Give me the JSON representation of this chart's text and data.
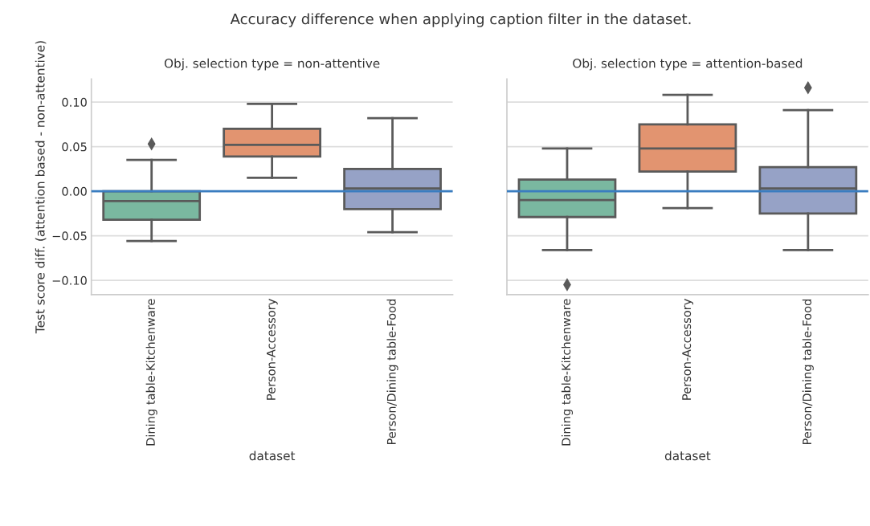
{
  "chart_data": [
    {
      "type": "box",
      "title": "Obj. selection type = non-attentive",
      "xlabel": "dataset",
      "ylabel": "Test score diff. (attention based - non-attentive)",
      "annotations": [
        "Accuracy difference when applying caption filter in the dataset."
      ],
      "categories": [
        "Dining table-Kitchenware",
        "Person-Accessory",
        "Person/Dining table-Food"
      ],
      "colors": [
        "#7ab8a0",
        "#e29470",
        "#96a2c6"
      ],
      "boxes": [
        {
          "low": -0.056,
          "q1": -0.032,
          "median": -0.011,
          "q3": 0.0,
          "high": 0.035,
          "outliers": [
            0.053
          ]
        },
        {
          "low": 0.015,
          "q1": 0.039,
          "median": 0.052,
          "q3": 0.07,
          "high": 0.098
        },
        {
          "low": -0.046,
          "q1": -0.02,
          "median": 0.003,
          "q3": 0.025,
          "high": 0.082
        }
      ],
      "ylim": [
        -0.116,
        0.126
      ],
      "yticks": [
        {
          "value": -0.1,
          "label": "−0.10"
        },
        {
          "value": -0.05,
          "label": "−0.05"
        },
        {
          "value": 0.0,
          "label": "0.00"
        },
        {
          "value": 0.05,
          "label": "0.05"
        },
        {
          "value": 0.1,
          "label": "0.10"
        }
      ],
      "ref_lines": [
        {
          "axis": "y",
          "value": 0,
          "label": null,
          "color": "#3a7dc0",
          "line_style": "solid"
        }
      ],
      "grid": "y"
    },
    {
      "type": "box",
      "title": "Obj. selection type = attention-based",
      "xlabel": "dataset",
      "categories": [
        "Dining table-Kitchenware",
        "Person-Accessory",
        "Person/Dining table-Food"
      ],
      "colors": [
        "#7ab8a0",
        "#e29470",
        "#96a2c6"
      ],
      "boxes": [
        {
          "low": -0.066,
          "q1": -0.029,
          "median": -0.01,
          "q3": 0.013,
          "high": 0.048,
          "outliers": [
            -0.105
          ]
        },
        {
          "low": -0.019,
          "q1": 0.022,
          "median": 0.048,
          "q3": 0.075,
          "high": 0.108
        },
        {
          "low": -0.066,
          "q1": -0.025,
          "median": 0.003,
          "q3": 0.027,
          "high": 0.091,
          "outliers": [
            0.116
          ]
        }
      ],
      "ylim": [
        -0.116,
        0.126
      ],
      "yticks": [
        -0.1,
        -0.05,
        0,
        0.05,
        0.1
      ],
      "ref_lines": [
        {
          "axis": "y",
          "value": 0,
          "label": null,
          "color": "#3a7dc0",
          "line_style": "solid"
        }
      ],
      "grid": "y",
      "tick_labels": "x"
    }
  ]
}
